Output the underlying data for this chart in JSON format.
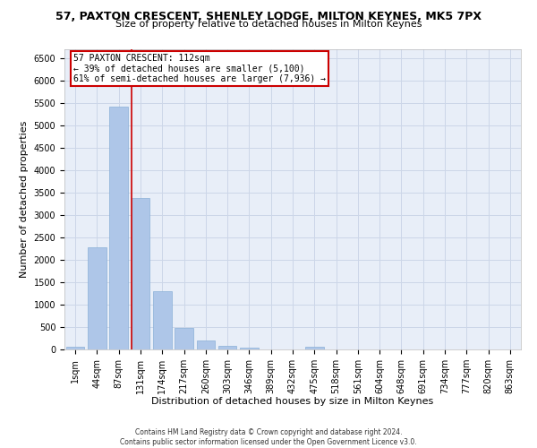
{
  "title": "57, PAXTON CRESCENT, SHENLEY LODGE, MILTON KEYNES, MK5 7PX",
  "subtitle": "Size of property relative to detached houses in Milton Keynes",
  "xlabel": "Distribution of detached houses by size in Milton Keynes",
  "ylabel": "Number of detached properties",
  "footer_line1": "Contains HM Land Registry data © Crown copyright and database right 2024.",
  "footer_line2": "Contains public sector information licensed under the Open Government Licence v3.0.",
  "bar_labels": [
    "1sqm",
    "44sqm",
    "87sqm",
    "131sqm",
    "174sqm",
    "217sqm",
    "260sqm",
    "303sqm",
    "346sqm",
    "389sqm",
    "432sqm",
    "475sqm",
    "518sqm",
    "561sqm",
    "604sqm",
    "648sqm",
    "691sqm",
    "734sqm",
    "777sqm",
    "820sqm",
    "863sqm"
  ],
  "bar_values": [
    70,
    2280,
    5420,
    3380,
    1300,
    480,
    210,
    85,
    50,
    10,
    5,
    55,
    0,
    0,
    0,
    0,
    0,
    0,
    0,
    0,
    0
  ],
  "bar_color": "#aec6e8",
  "bar_edge_color": "#8ab0d8",
  "grid_color": "#ccd6e8",
  "bg_color": "#e8eef8",
  "property_sqm": 112,
  "property_label": "57 PAXTON CRESCENT: 112sqm",
  "annotation_line1": "← 39% of detached houses are smaller (5,100)",
  "annotation_line2": "61% of semi-detached houses are larger (7,936) →",
  "vline_color": "#cc0000",
  "box_edge_color": "#cc0000",
  "ylim": [
    0,
    6700
  ],
  "yticks": [
    0,
    500,
    1000,
    1500,
    2000,
    2500,
    3000,
    3500,
    4000,
    4500,
    5000,
    5500,
    6000,
    6500
  ],
  "title_fontsize": 9,
  "subtitle_fontsize": 8,
  "xlabel_fontsize": 8,
  "ylabel_fontsize": 8,
  "tick_fontsize": 7,
  "footer_fontsize": 5.5,
  "annotation_fontsize": 7
}
